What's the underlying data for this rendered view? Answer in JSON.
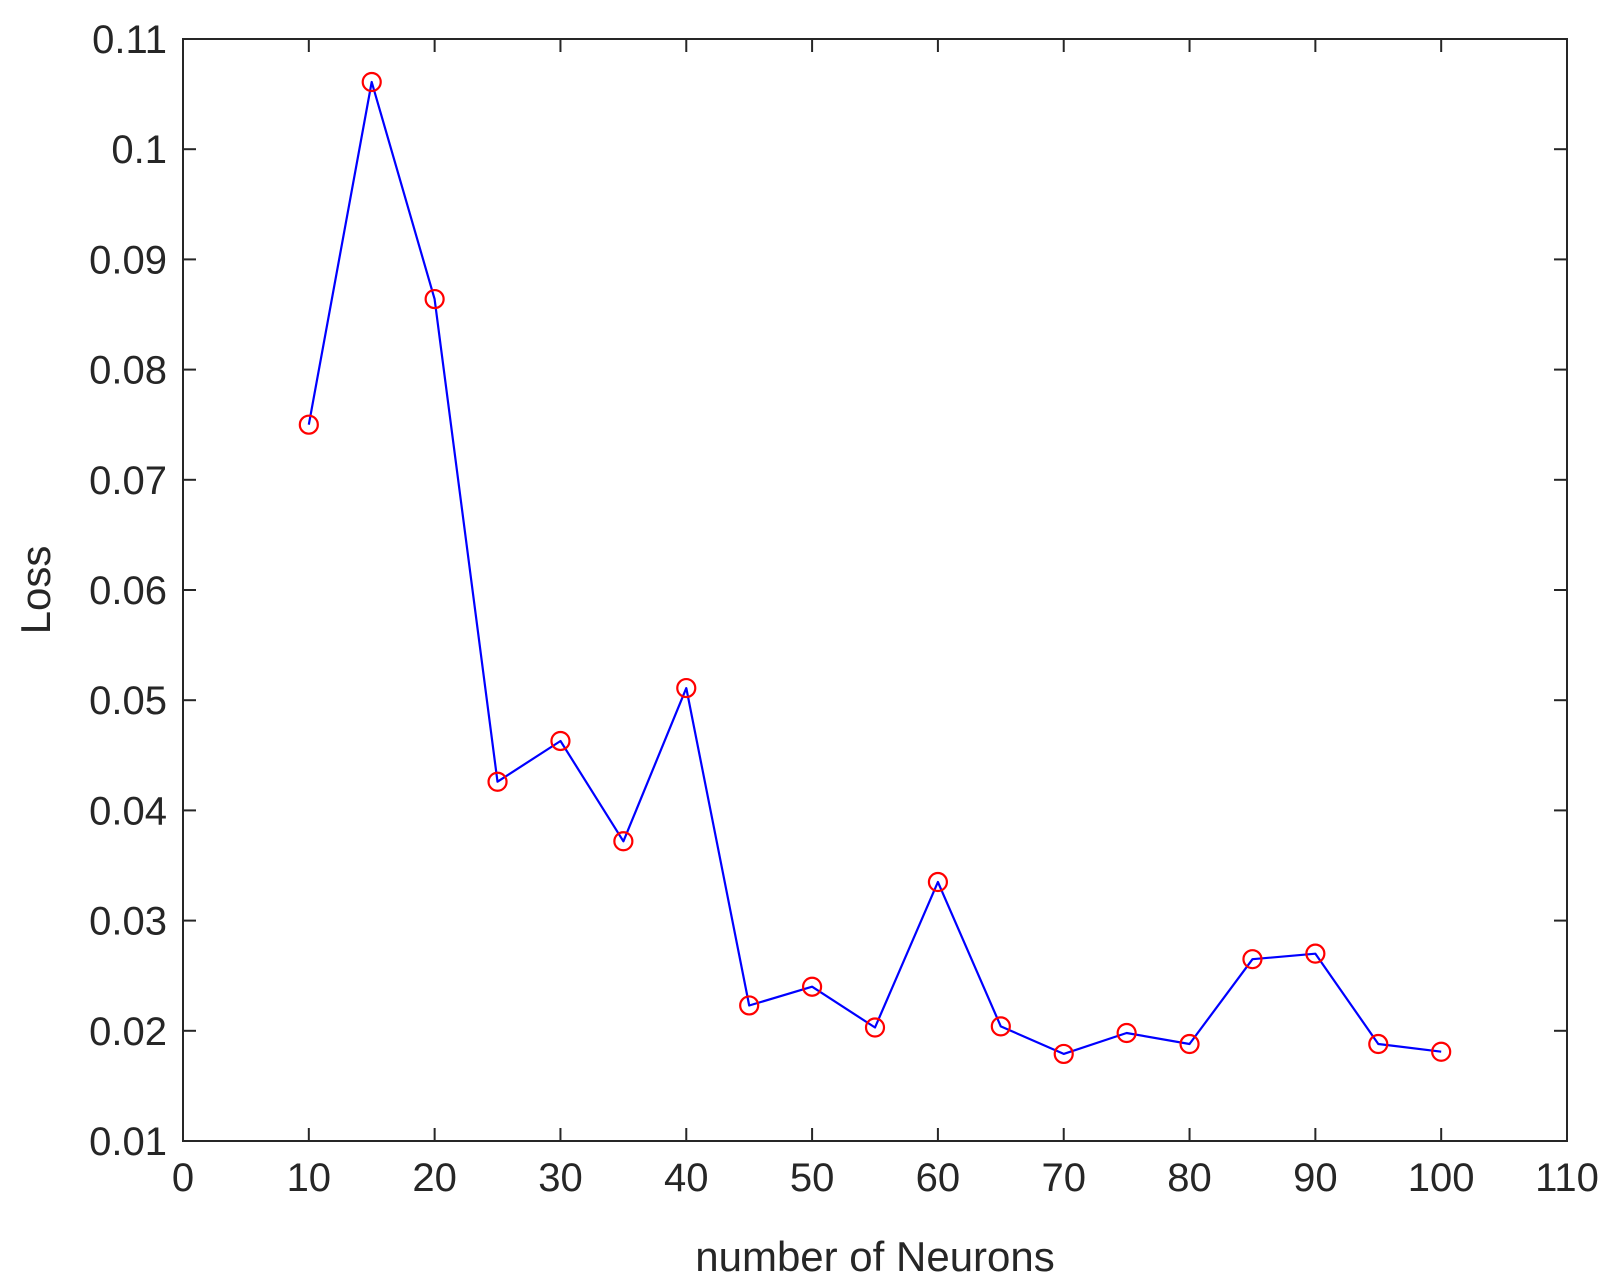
{
  "chart_data": {
    "type": "line",
    "title": "",
    "xlabel": "number of Neurons",
    "ylabel": "Loss",
    "xlim": [
      0,
      110
    ],
    "ylim": [
      0.01,
      0.11
    ],
    "xticks": [
      0,
      10,
      20,
      30,
      40,
      50,
      60,
      70,
      80,
      90,
      100,
      110
    ],
    "yticks": [
      0.01,
      0.02,
      0.03,
      0.04,
      0.05,
      0.06,
      0.07,
      0.08,
      0.09,
      0.1,
      0.11
    ],
    "xtick_labels": [
      "0",
      "10",
      "20",
      "30",
      "40",
      "50",
      "60",
      "70",
      "80",
      "90",
      "100",
      "110"
    ],
    "ytick_labels": [
      "0.01",
      "0.02",
      "0.03",
      "0.04",
      "0.05",
      "0.06",
      "0.07",
      "0.08",
      "0.09",
      "0.1",
      "0.11"
    ],
    "grid": false,
    "box": true,
    "series": [
      {
        "x": [
          10,
          15,
          20,
          25,
          30,
          35,
          40,
          45,
          50,
          55,
          60,
          65,
          70,
          75,
          80,
          85,
          90,
          95,
          100
        ],
        "y": [
          0.075,
          0.1061,
          0.0864,
          0.0426,
          0.0463,
          0.0372,
          0.0511,
          0.0223,
          0.024,
          0.0203,
          0.0335,
          0.0204,
          0.0179,
          0.0198,
          0.0188,
          0.0265,
          0.027,
          0.0188,
          0.0181
        ],
        "line_color": "#0000ff",
        "marker": "circle",
        "marker_color": "#ff0000"
      }
    ]
  }
}
